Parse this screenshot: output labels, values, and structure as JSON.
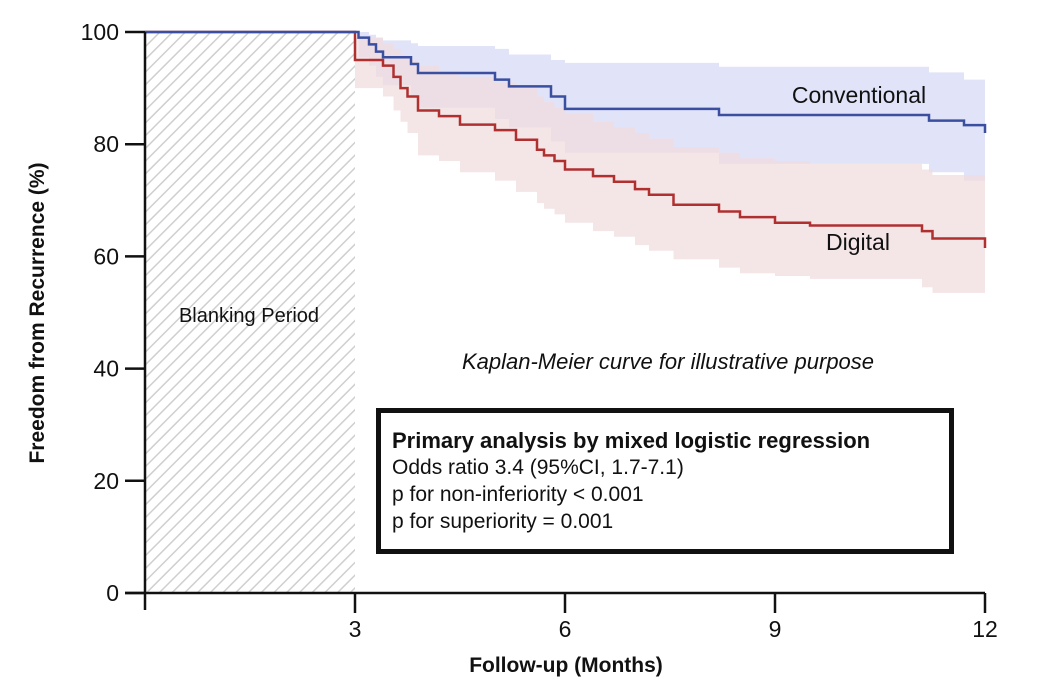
{
  "chart_data": {
    "type": "line",
    "subtype": "kaplan-meier step curve with confidence bands",
    "title": "",
    "xlabel": "Follow-up (Months)",
    "ylabel": "Freedom from Recurrence (%)",
    "xlim": [
      0,
      12
    ],
    "ylim": [
      0,
      100
    ],
    "xticks": [
      3,
      6,
      9,
      12
    ],
    "yticks": [
      0,
      20,
      40,
      60,
      80,
      100
    ],
    "grid": false,
    "shaded_region": {
      "label": "Blanking Period",
      "x_range": [
        0,
        3
      ],
      "pattern": "diagonal-hatch",
      "color": "#cccccc"
    },
    "annotation": "Kaplan-Meier curve for illustrative purpose",
    "series": [
      {
        "name": "Conventional",
        "color": "#3a4fa0",
        "band_color": "#dfe2f8",
        "x": [
          0,
          3.0,
          3.05,
          3.2,
          3.3,
          3.4,
          3.8,
          3.9,
          5.0,
          5.2,
          5.8,
          6.0,
          8.2,
          11.2,
          11.7,
          12.0
        ],
        "y": [
          100,
          100,
          99.0,
          97.8,
          96.5,
          95.5,
          94.3,
          92.7,
          91.5,
          90.3,
          88.5,
          86.3,
          85.2,
          84.2,
          83.4,
          82.0
        ],
        "ci_upper": [
          100,
          100,
          100,
          99.5,
          99.0,
          98.5,
          98.0,
          97.5,
          97.0,
          96.0,
          95.0,
          94.5,
          93.8,
          92.8,
          91.5,
          88.5
        ],
        "ci_lower": [
          100,
          100,
          95.5,
          94.0,
          92.0,
          90.5,
          88.5,
          86.5,
          84.5,
          83.0,
          80.5,
          78.5,
          76.5,
          75.0,
          73.5,
          72.0
        ]
      },
      {
        "name": "Digital",
        "color": "#b03030",
        "band_color": "#f0dcdf",
        "x": [
          0,
          3.0,
          3.4,
          3.55,
          3.65,
          3.75,
          3.9,
          4.2,
          4.5,
          5.0,
          5.3,
          5.6,
          5.7,
          5.85,
          6.0,
          6.4,
          6.7,
          7.0,
          7.2,
          7.55,
          8.2,
          8.5,
          9.0,
          9.5,
          11.1,
          11.25,
          12.0
        ],
        "y": [
          100,
          95.0,
          94.0,
          92.0,
          90.0,
          88.5,
          86.0,
          85.0,
          83.5,
          82.5,
          80.8,
          79.0,
          78.0,
          77.0,
          75.5,
          74.3,
          73.3,
          72.0,
          71.0,
          69.2,
          68.0,
          67.0,
          66.0,
          65.5,
          64.5,
          63.2,
          61.5
        ],
        "ci_upper": [
          100,
          99.0,
          98.0,
          97.0,
          96.0,
          95.0,
          94.0,
          93.0,
          92.0,
          91.0,
          90.0,
          88.5,
          87.5,
          86.5,
          85.5,
          84.0,
          83.0,
          82.0,
          81.0,
          79.5,
          78.5,
          77.5,
          77.0,
          76.5,
          75.5,
          74.5,
          71.0
        ],
        "ci_lower": [
          100,
          90.0,
          88.5,
          86.0,
          84.0,
          82.0,
          78.0,
          77.0,
          75.0,
          73.5,
          71.5,
          69.5,
          68.5,
          67.5,
          66.0,
          64.5,
          63.5,
          62.0,
          61.0,
          59.5,
          58.0,
          57.0,
          56.5,
          56.0,
          54.5,
          53.5,
          51.0
        ]
      }
    ],
    "legend": "inline labels near curve ends"
  },
  "labels": {
    "blanking": "Blanking Period",
    "annotation": "Kaplan-Meier curve for illustrative purpose",
    "conventional": "Conventional",
    "digital": "Digital",
    "xlabel": "Follow-up (Months)",
    "ylabel": "Freedom from Recurrence (%)"
  },
  "stats_box": {
    "title": "Primary analysis by mixed logistic regression",
    "lines": [
      "Odds ratio 3.4 (95%CI, 1.7-7.1)",
      "p for non-inferiority < 0.001",
      "p for superiority = 0.001"
    ]
  }
}
